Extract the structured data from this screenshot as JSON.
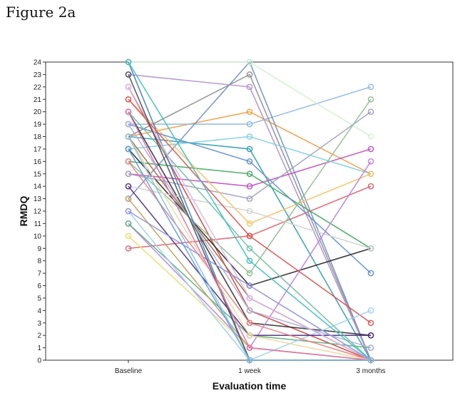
{
  "figure_label": "Figure 2a",
  "chart_data": {
    "type": "line",
    "title": "",
    "xlabel": "Evaluation time",
    "ylabel": "RMDQ",
    "categories": [
      "Baseline",
      "1 week",
      "3 months"
    ],
    "ylim": [
      0,
      24
    ],
    "yticks": [
      0,
      1,
      2,
      3,
      4,
      5,
      6,
      7,
      8,
      9,
      10,
      11,
      12,
      13,
      14,
      15,
      16,
      17,
      18,
      19,
      20,
      21,
      22,
      23,
      24
    ],
    "grid": false,
    "legend": "none",
    "markers": "open-circle",
    "series": [
      {
        "color": "#e06070",
        "values": [
          9,
          10,
          14
        ]
      },
      {
        "color": "#f0a040",
        "values": [
          18,
          20,
          15
        ]
      },
      {
        "color": "#90b8e0",
        "values": [
          19,
          19,
          22
        ]
      },
      {
        "color": "#7090c8",
        "values": [
          13,
          24,
          0
        ]
      },
      {
        "color": "#909090",
        "values": [
          18,
          23,
          0
        ]
      },
      {
        "color": "#b090d0",
        "values": [
          23,
          22,
          0
        ]
      },
      {
        "color": "#d0f0d0",
        "values": [
          24,
          24,
          18
        ]
      },
      {
        "color": "#30a0b0",
        "values": [
          18,
          17,
          0
        ]
      },
      {
        "color": "#40a860",
        "values": [
          16,
          15,
          9
        ]
      },
      {
        "color": "#c050c0",
        "values": [
          15,
          14,
          17
        ]
      },
      {
        "color": "#a0a0c0",
        "values": [
          15,
          13,
          20
        ]
      },
      {
        "color": "#80d0e0",
        "values": [
          17,
          18,
          15
        ]
      },
      {
        "color": "#f8c060",
        "values": [
          21,
          11,
          15
        ]
      },
      {
        "color": "#6090d0",
        "values": [
          19,
          16,
          7
        ]
      },
      {
        "color": "#d04040",
        "values": [
          22,
          4,
          0
        ]
      },
      {
        "color": "#303030",
        "values": [
          20,
          3,
          2
        ]
      },
      {
        "color": "#282828",
        "values": [
          17,
          6,
          9
        ]
      },
      {
        "color": "#8fbf8f",
        "values": [
          16,
          7,
          21
        ]
      },
      {
        "color": "#d0d0d0",
        "values": [
          14,
          12,
          9
        ]
      },
      {
        "color": "#a07040",
        "values": [
          18,
          5,
          0
        ]
      },
      {
        "color": "#c080e0",
        "values": [
          11,
          1,
          16
        ]
      },
      {
        "color": "#4080c0",
        "values": [
          24,
          0,
          0
        ]
      },
      {
        "color": "#e8e070",
        "values": [
          10,
          1,
          0
        ]
      },
      {
        "color": "#60b080",
        "values": [
          11,
          2,
          1
        ]
      },
      {
        "color": "#e05050",
        "values": [
          21,
          10,
          3
        ]
      },
      {
        "color": "#a0d0f0",
        "values": [
          12,
          0,
          4
        ]
      },
      {
        "color": "#503080",
        "values": [
          14,
          2,
          2
        ]
      },
      {
        "color": "#c0a060",
        "values": [
          13,
          1,
          0
        ]
      },
      {
        "color": "#70c0a0",
        "values": [
          20,
          9,
          0
        ]
      },
      {
        "color": "#b0b0d8",
        "values": [
          19,
          4,
          1
        ]
      },
      {
        "color": "#f08080",
        "values": [
          16,
          3,
          0
        ]
      },
      {
        "color": "#60a0e0",
        "values": [
          17,
          0,
          0
        ]
      },
      {
        "color": "#d8b8e8",
        "values": [
          22,
          5,
          0
        ]
      },
      {
        "color": "#40c0c0",
        "values": [
          24,
          8,
          0
        ]
      },
      {
        "color": "#9090e0",
        "values": [
          12,
          6,
          0
        ]
      },
      {
        "color": "#f0d8a0",
        "values": [
          18,
          2,
          0
        ]
      },
      {
        "color": "#505050",
        "values": [
          23,
          0,
          0
        ]
      },
      {
        "color": "#e070b0",
        "values": [
          20,
          1,
          0
        ]
      },
      {
        "color": "#88c0e8",
        "values": [
          18,
          0,
          0
        ]
      }
    ]
  }
}
